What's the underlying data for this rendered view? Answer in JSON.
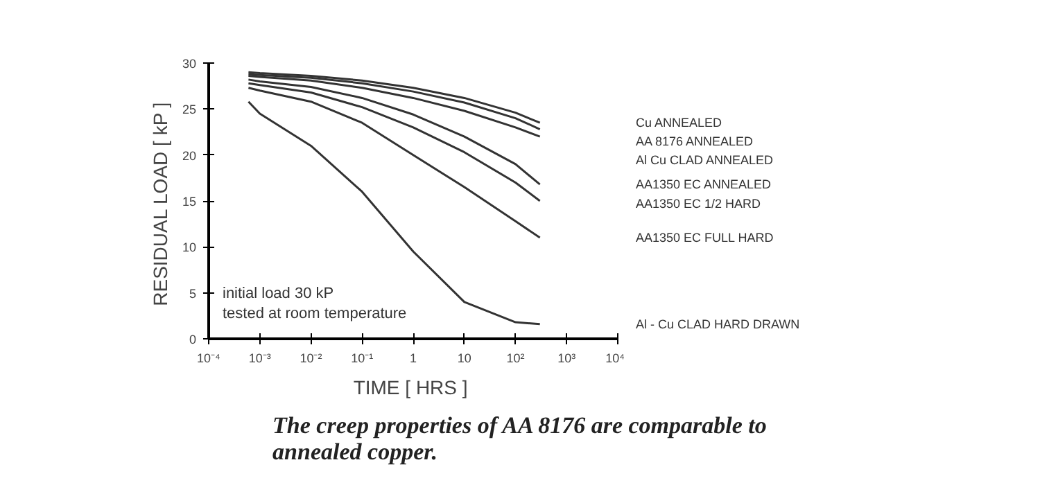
{
  "chart_data": {
    "type": "line",
    "xlabel": "TIME  [ HRS ]",
    "ylabel": "RESIDUAL LOAD  [ kP ]",
    "log": "x",
    "x": [
      0.0006,
      0.001,
      0.01,
      0.1,
      1,
      10,
      100,
      300
    ],
    "series": [
      {
        "name": "Cu  ANNEALED",
        "color": "#333333",
        "values": [
          29,
          28.9,
          28.6,
          28.1,
          27.3,
          26.2,
          24.6,
          23.5
        ]
      },
      {
        "name": "AA 8176 ANNEALED",
        "color": "#333333",
        "values": [
          28.8,
          28.7,
          28.4,
          27.8,
          26.9,
          25.7,
          24,
          22.8
        ]
      },
      {
        "name": "Al  Cu  CLAD ANNEALED",
        "color": "#333333",
        "values": [
          28.6,
          28.5,
          28.1,
          27.3,
          26.2,
          24.8,
          23,
          22
        ]
      },
      {
        "name": "AA1350 EC ANNEALED",
        "color": "#333333",
        "values": [
          28.2,
          28,
          27.4,
          26.2,
          24.4,
          22,
          19,
          16.8
        ]
      },
      {
        "name": "AA1350 EC 1/2 HARD",
        "color": "#333333",
        "values": [
          27.8,
          27.6,
          26.8,
          25.2,
          23,
          20.3,
          17,
          15
        ]
      },
      {
        "name": "AA1350 EC FULL HARD",
        "color": "#333333",
        "values": [
          27.3,
          27,
          25.8,
          23.5,
          20,
          16.5,
          12.8,
          11
        ]
      },
      {
        "name": "Al - Cu  CLAD  HARD  DRAWN",
        "color": "#333333",
        "values": [
          25.8,
          24.5,
          21,
          16,
          9.5,
          4,
          1.8,
          1.6
        ]
      }
    ],
    "xlim": [
      0.0001,
      10000
    ],
    "ylim": [
      0,
      30
    ],
    "xticks": [
      {
        "value": 0.0001,
        "label": "10⁻⁴"
      },
      {
        "value": 0.001,
        "label": "10⁻³"
      },
      {
        "value": 0.01,
        "label": "10⁻²"
      },
      {
        "value": 0.1,
        "label": "10⁻¹"
      },
      {
        "value": 1,
        "label": "1"
      },
      {
        "value": 10,
        "label": "10"
      },
      {
        "value": 100,
        "label": "10²"
      },
      {
        "value": 1000,
        "label": "10³"
      },
      {
        "value": 10000,
        "label": "10⁴"
      }
    ],
    "yticks": [
      0,
      5,
      10,
      15,
      20,
      25,
      30
    ],
    "grid": false,
    "marker": "none",
    "line_style": "solid",
    "annotations": [
      "initial load 30 kP\ntested at room temperature",
      "The creep properties of AA 8176 are comparable to\nannealed copper."
    ]
  }
}
